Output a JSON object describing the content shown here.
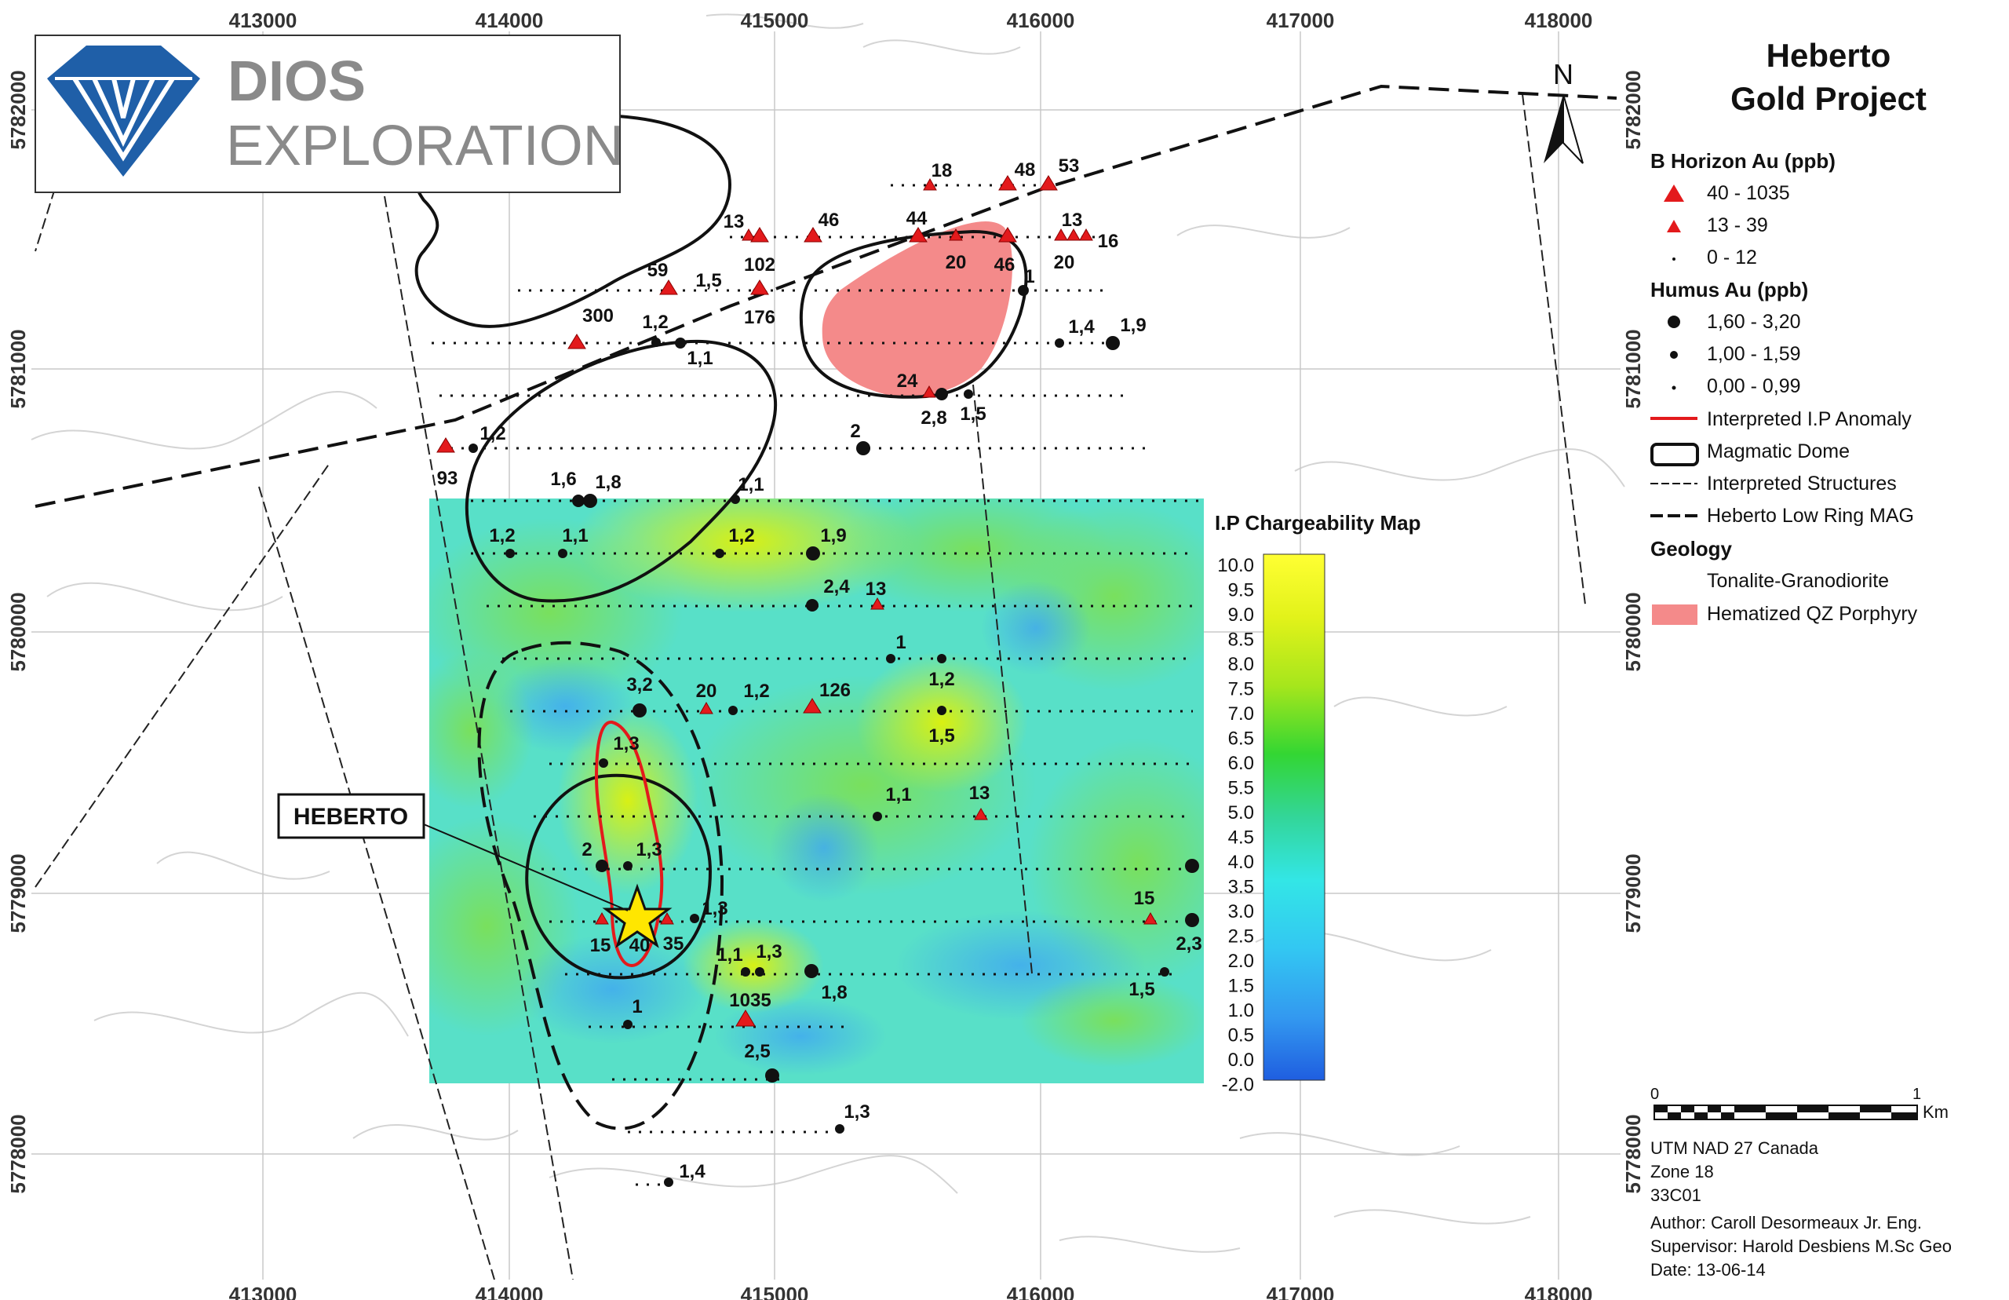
{
  "title_line1": "Heberto",
  "title_line2": "Gold Project",
  "logo": {
    "word1": "DIOS",
    "word2": "EXPLORATION"
  },
  "north": "N",
  "eastings": [
    "413000",
    "414000",
    "415000",
    "416000",
    "417000",
    "418000"
  ],
  "northings": [
    "5782000",
    "5781000",
    "5780000",
    "5779000",
    "5778000"
  ],
  "legend": {
    "b_horizon_head": "B Horizon Au (ppb)",
    "b1": "40 - 1035",
    "b2": "13 - 39",
    "b3": "0 - 12",
    "humus_head": "Humus Au (ppb)",
    "h1": "1,60 - 3,20",
    "h2": "1,00 - 1,59",
    "h3": "0,00 - 0,99",
    "ip_anomaly": "Interpreted I.P Anomaly",
    "magmatic_dome": "Magmatic Dome",
    "structures": "Interpreted Structures",
    "ring_mag": "Heberto Low Ring MAG",
    "geology_head": "Geology",
    "tonalite": "Tonalite-Granodiorite",
    "porphyry": "Hematized QZ Porphyry"
  },
  "colors": {
    "triangle": "#e31a1c",
    "anomaly": "#e31a1c",
    "porphyry": "#f48a8a",
    "star": "#ffe600"
  },
  "colorbar": {
    "title": "I.P Chargeability Map",
    "ticks": [
      "10.0",
      "9.5",
      "9.0",
      "8.5",
      "8.0",
      "7.5",
      "7.0",
      "6.5",
      "6.0",
      "5.5",
      "5.0",
      "4.5",
      "4.0",
      "3.5",
      "3.0",
      "2.5",
      "2.0",
      "1.5",
      "1.0",
      "0.5",
      "0.0",
      "-2.0"
    ]
  },
  "heberto_label": "HEBERTO",
  "scale": {
    "zero": "0",
    "one": "1",
    "unit": "Km"
  },
  "info": {
    "datum": "UTM NAD 27 Canada",
    "zone": "Zone 18",
    "sheet": "33C01",
    "author": "Author: Caroll Desormeaux Jr. Eng.",
    "supervisor": "Supervisor: Harold Desbiens M.Sc Geo",
    "date": "Date: 13-06-14"
  },
  "labels": [
    "18",
    "48",
    "53",
    "13",
    "46",
    "44",
    "13",
    "16",
    "102",
    "20",
    "46",
    "20",
    "59",
    "1,5",
    "176",
    "1",
    "1,2",
    "300",
    "1,4",
    "1,9",
    "1,1",
    "24",
    "1,2",
    "2,8",
    "1,5",
    "2",
    "93",
    "1,6",
    "1,8",
    "1,1",
    "1,2",
    "1,1",
    "1,2",
    "1,9",
    "2,4",
    "13",
    "1",
    "3,2",
    "20",
    "1,2",
    "126",
    "1,2",
    "1,5",
    "1,3",
    "1,1",
    "13",
    "2",
    "1,3",
    "1,3",
    "15",
    "15",
    "40",
    "35",
    "1,1",
    "1,3",
    "1,8",
    "1035",
    "1",
    "2,5",
    "1,5",
    "2,3",
    "1,3",
    "1,4"
  ]
}
